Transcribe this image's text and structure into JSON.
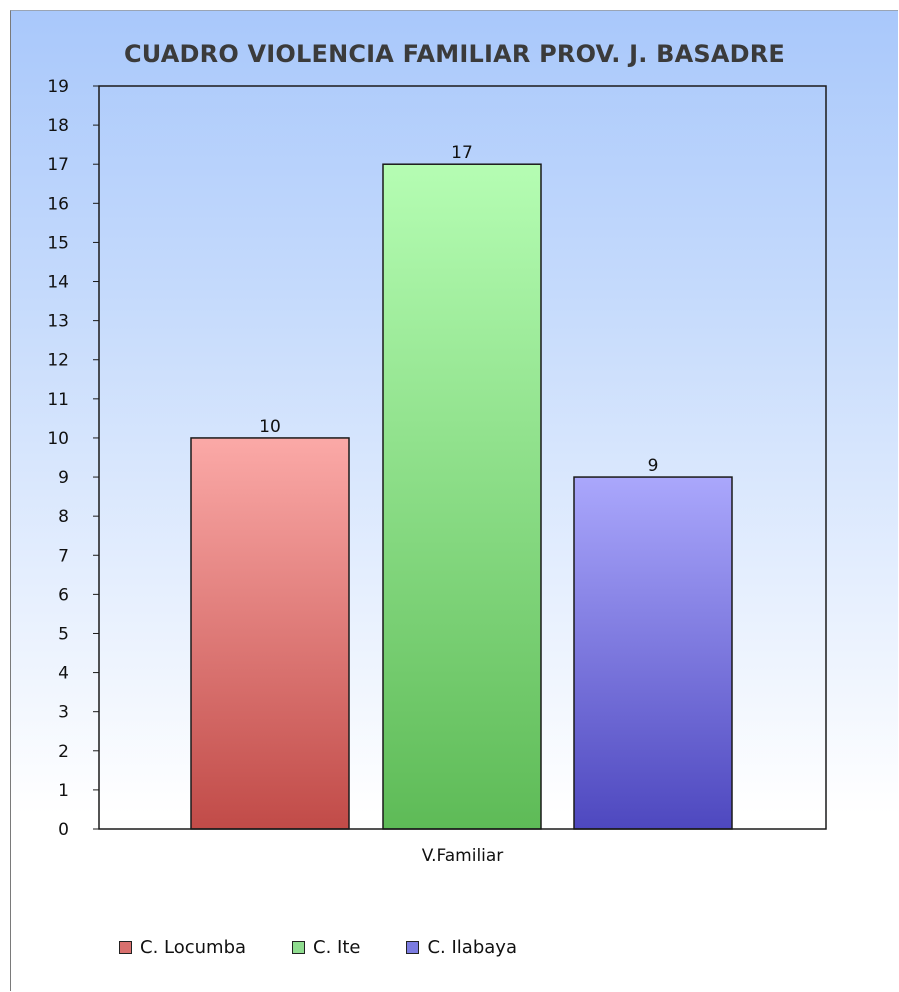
{
  "chart_data": {
    "type": "bar",
    "title": "CUADRO VIOLENCIA FAMILIAR PROV. J. BASADRE",
    "categories": [
      "V.Familiar"
    ],
    "series": [
      {
        "name": "C. Locumba",
        "values": [
          10
        ],
        "color": "#d9706e"
      },
      {
        "name": "C. Ite",
        "values": [
          17
        ],
        "color": "#8fdc8f"
      },
      {
        "name": "C. Ilabaya",
        "values": [
          9
        ],
        "color": "#7b7be0"
      }
    ],
    "ylim": [
      0,
      19
    ],
    "yticks": [
      0,
      1,
      2,
      3,
      4,
      5,
      6,
      7,
      8,
      9,
      10,
      11,
      12,
      13,
      14,
      15,
      16,
      17,
      18,
      19
    ],
    "xlabel": "",
    "ylabel": "",
    "grid": false,
    "legend_position": "bottom-left"
  },
  "colors": {
    "locumba_top": "#fba9a7",
    "locumba_bottom": "#c14b48",
    "ite_top": "#b5fdb3",
    "ite_bottom": "#5ebb57",
    "ilabaya_top": "#aaa7fc",
    "ilabaya_bottom": "#4e48bf",
    "background_top": "#a9c8fb"
  }
}
